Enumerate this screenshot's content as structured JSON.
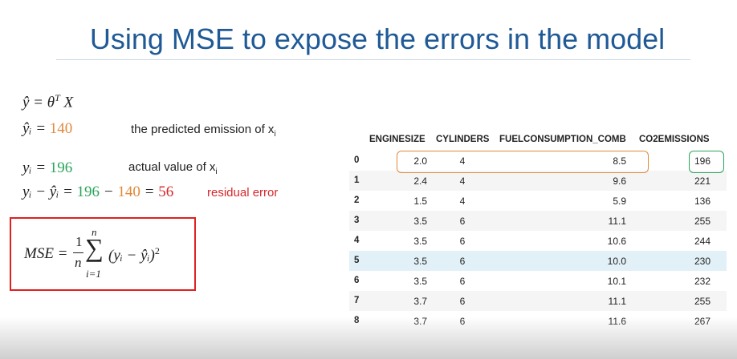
{
  "title": "Using MSE to expose the errors in the model",
  "formulas": {
    "model": {
      "lhs": "ŷ = θ",
      "sup": "T",
      "rest": "X"
    },
    "predicted": {
      "lhs": "ŷᵢ = ",
      "value": "140",
      "note": "the predicted emission of x",
      "note_sub": "i"
    },
    "actual": {
      "lhs": "yᵢ = ",
      "value": "196",
      "note": "actual value of x",
      "note_sub": "i"
    },
    "residual": {
      "lhs": "yᵢ − ŷᵢ = ",
      "a": "196",
      "minus": " − ",
      "b": "140",
      "eq": " = ",
      "result": "56",
      "note": "residual error"
    },
    "mse": {
      "lhs": "MSE = ",
      "num": "1",
      "den": "n",
      "sum_top": "n",
      "sum": "∑",
      "sum_bottom": "i=1",
      "term": "(yᵢ − ŷᵢ)",
      "power": "2"
    }
  },
  "table": {
    "columns": [
      "ENGINESIZE",
      "CYLINDERS",
      "FUELCONSUMPTION_COMB",
      "CO2EMISSIONS"
    ],
    "rows": [
      [
        "0",
        "2.0",
        "4",
        "8.5",
        "196"
      ],
      [
        "1",
        "2.4",
        "4",
        "9.6",
        "221"
      ],
      [
        "2",
        "1.5",
        "4",
        "5.9",
        "136"
      ],
      [
        "3",
        "3.5",
        "6",
        "11.1",
        "255"
      ],
      [
        "4",
        "3.5",
        "6",
        "10.6",
        "244"
      ],
      [
        "5",
        "3.5",
        "6",
        "10.0",
        "230"
      ],
      [
        "6",
        "3.5",
        "6",
        "10.1",
        "232"
      ],
      [
        "7",
        "3.7",
        "6",
        "11.1",
        "255"
      ],
      [
        "8",
        "3.7",
        "6",
        "11.6",
        "267"
      ]
    ]
  }
}
